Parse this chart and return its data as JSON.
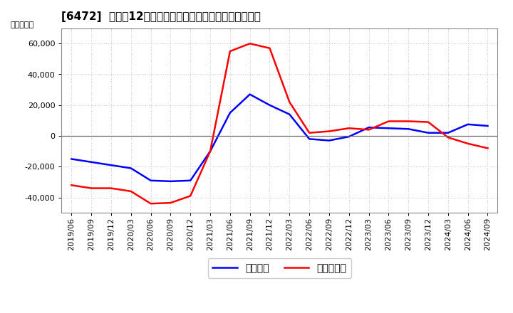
{
  "title": "[6472]  利益だ12か月移動合計の対前年同期増減額の推移",
  "ylabel": "（百万円）",
  "x_labels": [
    "2019/06",
    "2019/09",
    "2019/12",
    "2020/03",
    "2020/06",
    "2020/09",
    "2020/12",
    "2021/03",
    "2021/06",
    "2021/09",
    "2021/12",
    "2022/03",
    "2022/06",
    "2022/09",
    "2022/12",
    "2023/03",
    "2023/06",
    "2023/09",
    "2023/12",
    "2024/03",
    "2024/06",
    "2024/09"
  ],
  "keijo_rieki": [
    -15000,
    -17000,
    -19000,
    -21000,
    -29000,
    -29500,
    -29000,
    -10000,
    15000,
    27000,
    20000,
    14000,
    -2000,
    -3000,
    -500,
    5500,
    5000,
    4500,
    2000,
    2000,
    7500,
    6500
  ],
  "touki_junn_rieki": [
    -32000,
    -34000,
    -34000,
    -36000,
    -44000,
    -43500,
    -39000,
    -10000,
    55000,
    60000,
    57000,
    22000,
    2000,
    3000,
    5000,
    4000,
    9500,
    9500,
    9000,
    -1000,
    -5000,
    -8000
  ],
  "line_color_keijo": "#0000ff",
  "line_color_touki": "#ff0000",
  "ylim": [
    -50000,
    70000
  ],
  "yticks": [
    -40000,
    -20000,
    0,
    20000,
    40000,
    60000
  ],
  "legend_keijo": "経常利益",
  "legend_touki": "当期純利益",
  "bg_color": "#ffffff",
  "plot_bg_color": "#ffffff",
  "grid_color": "#aaaaaa",
  "title_fontsize": 11,
  "axis_fontsize": 8,
  "legend_fontsize": 10
}
